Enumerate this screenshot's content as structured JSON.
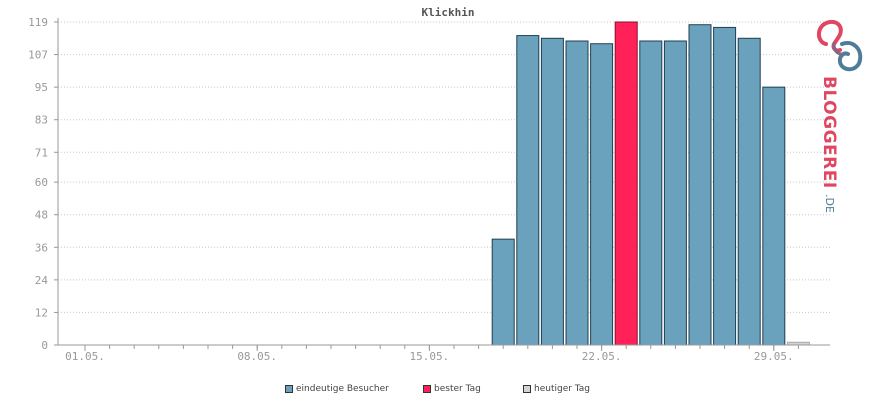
{
  "chart_data": {
    "type": "bar",
    "title": "Klickhin",
    "xlabel": "",
    "ylabel": "",
    "ylim": [
      0,
      119
    ],
    "yticks": [
      0,
      12,
      24,
      36,
      48,
      60,
      71,
      83,
      95,
      107,
      119
    ],
    "x_tick_labels": [
      "01.05.",
      "08.05.",
      "15.05.",
      "22.05.",
      "29.05."
    ],
    "x_tick_days": [
      1,
      8,
      15,
      22,
      29
    ],
    "days": [
      1,
      2,
      3,
      4,
      5,
      6,
      7,
      8,
      9,
      10,
      11,
      12,
      13,
      14,
      15,
      16,
      17,
      18,
      19,
      20,
      21,
      22,
      23,
      24,
      25,
      26,
      27,
      28,
      29,
      30
    ],
    "values": [
      0,
      0,
      0,
      0,
      0,
      0,
      0,
      0,
      0,
      0,
      0,
      0,
      0,
      0,
      0,
      0,
      0,
      39,
      114,
      113,
      112,
      111,
      119,
      112,
      112,
      118,
      117,
      113,
      95,
      1
    ],
    "best_day": 23,
    "today": 30,
    "grid": true,
    "legend_position": "bottom",
    "series": [
      {
        "name": "eindeutige Besucher",
        "color": "#6aa2bd"
      },
      {
        "name": "bester Tag",
        "color": "#ff2157"
      },
      {
        "name": "heutiger Tag",
        "color": "#d4d4d4"
      }
    ]
  },
  "logo": {
    "text": "BLOGGEREI.DE",
    "colors": {
      "pink": "#e0465f",
      "blue": "#4f7d98"
    }
  }
}
